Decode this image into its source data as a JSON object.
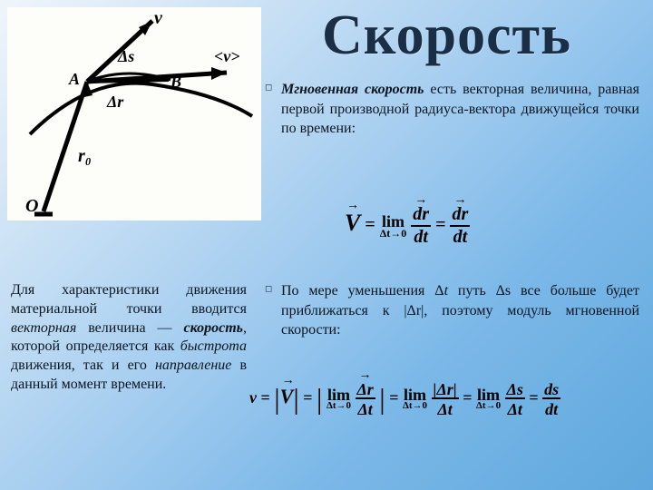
{
  "title": "Скорость",
  "bullet1_html": "<em><b>Мгновенная скорость</b></em> есть векторная величина, равная первой производной радиуса-вектора движущейся точки по времени:",
  "formula1": {
    "V": "V",
    "lim": "lim",
    "limsub": "Δt→0",
    "dr": "dr",
    "dt": "dt"
  },
  "lefttext_html": "Для характеристики движения материальной точки вводится <em>векторная</em> величина — <em><b>скорость</b></em>, которой определяется как <em>быстрота</em> движения, так и его <em>направление</em> в данный момент времени.",
  "bullet2_html": "По мере уменьшения Δ<em>t</em> путь Δs все больше будет приближаться к |Δr|, поэтому модуль мгновенной скорости:",
  "formula2": {
    "v": "v",
    "V": "V",
    "lim": "lim",
    "limsub": "Δt→0",
    "dr": "Δr",
    "dt": "Δt",
    "dr2": "|Δr|",
    "ds": "Δs",
    "ds2": "ds",
    "dt2": "dt"
  },
  "diagram": {
    "labels": {
      "v": "v",
      "A": "A",
      "B": "B",
      "ds": "Δs",
      "avgv": "<v>",
      "dr": "Δr",
      "r0": "r₀",
      "O": "O"
    }
  },
  "colors": {
    "title": "#1a2f45",
    "text": "#0a1520",
    "stroke": "#000000",
    "bg_diagram": "#fdfdfa"
  }
}
